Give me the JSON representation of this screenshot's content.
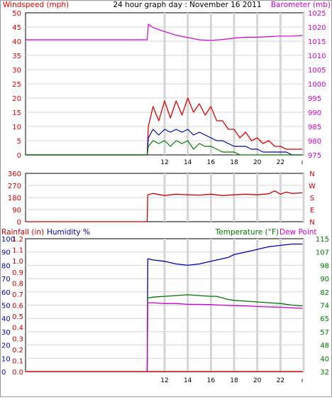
{
  "header": {
    "left_label": "Windspeed (mph)",
    "title": "24 hour graph day : November 16 2011",
    "right_label": "Barometer (mb)"
  },
  "colors": {
    "wind": "#dd0000",
    "gust": "#dd0000",
    "avg": "#0000aa",
    "low": "#007700",
    "baro": "#cc00cc",
    "dir": "#cc0000",
    "rain": "#cc0000",
    "humidity": "#0000aa",
    "temp": "#007700",
    "dew": "#cc00cc",
    "grid": "#d4d4d4"
  },
  "chart_data": [
    {
      "type": "line",
      "name": "wind-and-barometer",
      "x_ticks": [
        "12",
        "14",
        "16",
        "18",
        "20",
        "22"
      ],
      "left_axis": {
        "label": "Windspeed (mph)",
        "ticks": [
          "50",
          "45",
          "40",
          "35",
          "30",
          "25",
          "20",
          "15",
          "10",
          "5",
          "0"
        ],
        "range": [
          0,
          50
        ]
      },
      "right_axis": {
        "label": "Barometer (mb)",
        "ticks": [
          "1025",
          "1020",
          "1015",
          "1010",
          "1005",
          "1000",
          "995",
          "990",
          "985",
          "980",
          "975"
        ],
        "range": [
          975,
          1025
        ]
      },
      "series": [
        {
          "key": "baro",
          "axis": "right",
          "x": [
            0,
            10.5,
            10.6,
            11,
            12,
            13,
            14,
            15,
            16,
            17,
            18,
            19,
            20,
            21,
            22,
            23,
            23.9
          ],
          "y": [
            1015.5,
            1015.5,
            1021,
            1019.8,
            1018.4,
            1017.1,
            1016.3,
            1015.5,
            1015.3,
            1015.6,
            1016.1,
            1016.4,
            1016.4,
            1016.6,
            1016.8,
            1016.8,
            1017
          ]
        },
        {
          "key": "gust",
          "axis": "left",
          "x": [
            0,
            10.5,
            10.6,
            11,
            11.5,
            12,
            12.5,
            13,
            13.5,
            14,
            14.5,
            15,
            15.5,
            16,
            16.5,
            17,
            17.5,
            18,
            18.5,
            19,
            19.5,
            20,
            20.5,
            21,
            21.5,
            22,
            22.5,
            23,
            23.5,
            23.9
          ],
          "y": [
            0,
            0,
            10,
            17,
            12,
            19,
            13,
            19,
            14,
            20,
            15,
            18,
            14,
            17,
            12,
            12,
            9,
            9,
            6,
            8,
            5,
            6,
            4,
            5,
            3,
            3,
            2,
            2,
            2,
            2
          ]
        },
        {
          "key": "avg",
          "axis": "left",
          "x": [
            0,
            10.5,
            10.6,
            11,
            11.5,
            12,
            12.5,
            13,
            13.5,
            14,
            14.5,
            15,
            15.5,
            16,
            16.5,
            17,
            17.5,
            18,
            18.5,
            19,
            19.5,
            20,
            20.5,
            21,
            21.5,
            22,
            22.5,
            23,
            23.5,
            23.9
          ],
          "y": [
            0,
            0,
            6,
            9,
            7,
            9,
            8,
            9,
            8,
            9,
            7,
            8,
            7,
            6,
            5,
            5,
            4,
            3,
            3,
            3,
            2,
            2,
            1,
            1,
            1,
            1,
            1,
            0,
            0,
            0
          ]
        },
        {
          "key": "low",
          "axis": "left",
          "x": [
            0,
            10.5,
            10.6,
            11,
            11.5,
            12,
            12.5,
            13,
            13.5,
            14,
            14.5,
            15,
            15.5,
            16,
            16.5,
            17,
            17.5,
            18,
            18.5,
            19,
            19.5,
            20,
            20.5,
            21,
            21.5,
            22,
            22.5,
            23,
            23.5,
            23.9
          ],
          "y": [
            0,
            0,
            3,
            5,
            4,
            5,
            3,
            5,
            4,
            5,
            2,
            4,
            3,
            3,
            2,
            1,
            1,
            1,
            0,
            0,
            0,
            0,
            0,
            0,
            0,
            0,
            0,
            0,
            0,
            0
          ]
        }
      ]
    },
    {
      "type": "line",
      "name": "wind-direction",
      "x_ticks": [
        "12",
        "14",
        "16",
        "18",
        "20",
        "22"
      ],
      "left_axis": {
        "ticks": [
          "360",
          "270",
          "180",
          "90",
          "0"
        ],
        "range": [
          0,
          360
        ]
      },
      "right_axis": {
        "ticks": [
          "N",
          "W",
          "S",
          "E",
          "N"
        ]
      },
      "series": [
        {
          "key": "dir",
          "axis": "left",
          "x": [
            0,
            10.5,
            10.55,
            11,
            12,
            13,
            14,
            15,
            16,
            17,
            18,
            19,
            20,
            21,
            21.5,
            22,
            22.5,
            23,
            23.9
          ],
          "y": [
            0,
            0,
            200,
            210,
            195,
            205,
            200,
            198,
            205,
            195,
            200,
            205,
            200,
            208,
            230,
            205,
            220,
            210,
            215
          ]
        }
      ]
    },
    {
      "type": "line",
      "name": "rain-humidity-temperature",
      "x_ticks": [
        "12",
        "14",
        "16",
        "18",
        "20",
        "22"
      ],
      "labels": {
        "rain": "Rainfall (in)",
        "humidity": "Humidity %",
        "temp": "Temperature (°F)",
        "dew": "Dew Point"
      },
      "rain_axis": {
        "ticks": [
          "1.2",
          "1.1",
          "1.0",
          "0.9",
          "0.8",
          "0.7",
          "0.6",
          "0.5",
          "0.4",
          "0.3",
          "0.2",
          "0.1",
          "0.0"
        ],
        "range": [
          0,
          1.2
        ]
      },
      "humidity_axis": {
        "ticks": [
          "100",
          "90",
          "80",
          "70",
          "60",
          "50",
          "40",
          "30",
          "20",
          "10",
          "0"
        ],
        "range": [
          0,
          100
        ]
      },
      "temp_axis": {
        "ticks": [
          "115",
          "107",
          "98",
          "90",
          "82",
          "74",
          "65",
          "57",
          "48",
          "40",
          "32"
        ],
        "range": [
          32,
          115
        ]
      },
      "series": [
        {
          "key": "rain",
          "axis": "rain",
          "x": [
            0,
            23.9
          ],
          "y": [
            0,
            0
          ]
        },
        {
          "key": "humidity",
          "axis": "humidity",
          "x": [
            10.5,
            10.55,
            11,
            12,
            13,
            14,
            15,
            16,
            17,
            17.5,
            18,
            19,
            20,
            21,
            22,
            23,
            23.9
          ],
          "y": [
            0,
            85,
            84,
            83,
            81,
            80,
            81,
            83,
            85,
            86,
            88,
            90,
            92,
            94,
            95,
            96,
            96
          ]
        },
        {
          "key": "temp",
          "axis": "temp",
          "x": [
            10.5,
            10.55,
            11,
            12,
            13,
            14,
            15,
            16,
            16.5,
            17,
            17.5,
            18,
            19,
            20,
            21,
            22,
            23,
            23.9
          ],
          "y": [
            32,
            78,
            78.5,
            79,
            79.5,
            80,
            79.5,
            79,
            79,
            78,
            77,
            76.5,
            76,
            75.5,
            75,
            74.5,
            73.5,
            73
          ]
        },
        {
          "key": "dew",
          "axis": "temp",
          "x": [
            10.5,
            10.55,
            11,
            12,
            13,
            14,
            15,
            16,
            17,
            18,
            19,
            20,
            21,
            22,
            23,
            23.9
          ],
          "y": [
            32,
            75,
            75,
            74.5,
            74.5,
            74,
            74,
            73.8,
            73.5,
            73.2,
            73,
            72.6,
            72.4,
            72.2,
            71.8,
            71.5
          ]
        }
      ]
    }
  ]
}
